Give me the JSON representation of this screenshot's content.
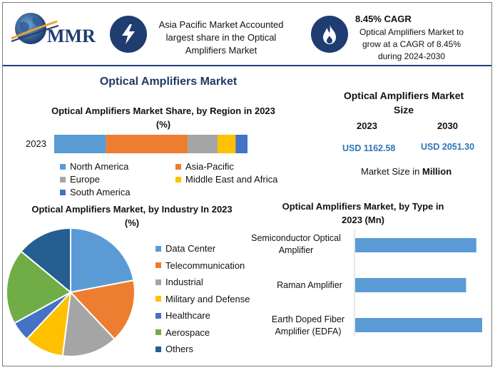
{
  "brand": {
    "logo_text": "MMR"
  },
  "header": {
    "item1": "Asia Pacific Market Accounted largest share in the Optical Amplifiers Market",
    "item2_title": "8.45% CAGR",
    "item2_body": "Optical Amplifiers Market to grow at a CAGR of 8.45% during 2024-2030",
    "icons": [
      "lightning-icon",
      "flame-icon"
    ]
  },
  "main_title": "Optical Amplifiers Market",
  "market_size": {
    "title": "Optical Amplifiers Market Size",
    "year1": "2023",
    "year2": "2030",
    "value1": "USD 1162.58",
    "value2": "USD 2051.30",
    "unit_prefix": "Market Size in",
    "unit_bold": "Million"
  },
  "colors": {
    "navy": "#1f3d70",
    "blue": "#5b9bd5",
    "orange": "#ed7d31",
    "gray": "#a5a5a5",
    "yellow": "#ffc000",
    "darkblue": "#4472c4",
    "green": "#70ad47",
    "darknavy": "#255e91"
  },
  "chart_data": [
    {
      "type": "bar",
      "orientation": "horizontal-stacked",
      "title": "Optical Amplifiers Market Share, by Region in 2023 (%)",
      "categories": [
        "2023"
      ],
      "series": [
        {
          "name": "North America",
          "values": [
            26
          ],
          "color": "#5b9bd5"
        },
        {
          "name": "Asia-Pacific",
          "values": [
            41
          ],
          "color": "#ed7d31"
        },
        {
          "name": "Europe",
          "values": [
            15
          ],
          "color": "#a5a5a5"
        },
        {
          "name": "Middle East and Africa",
          "values": [
            9
          ],
          "color": "#ffc000"
        },
        {
          "name": "South America",
          "values": [
            6
          ],
          "color": "#4472c4"
        }
      ],
      "legend": "bottom"
    },
    {
      "type": "pie",
      "title": "Optical Amplifiers Market, by Industry In 2023 (%)",
      "labels": [
        "Data Center",
        "Telecommunication",
        "Industrial",
        "Military and Defense",
        "Healthcare",
        "Aerospace",
        "Others"
      ],
      "values": [
        22,
        16,
        14,
        10,
        5,
        19,
        14
      ],
      "colors": [
        "#5b9bd5",
        "#ed7d31",
        "#a5a5a5",
        "#ffc000",
        "#4472c4",
        "#70ad47",
        "#255e91"
      ],
      "legend": "right"
    },
    {
      "type": "bar",
      "orientation": "horizontal",
      "title": "Optical Amplifiers Market, by Type in 2023 (Mn)",
      "categories": [
        "Semiconductor Optical Amplifier",
        "Raman Amplifier",
        "Earth Doped Fiber Amplifier (EDFA)"
      ],
      "values": [
        355,
        325,
        440
      ],
      "color": "#5b9bd5",
      "xlim": [
        0,
        600
      ]
    }
  ]
}
